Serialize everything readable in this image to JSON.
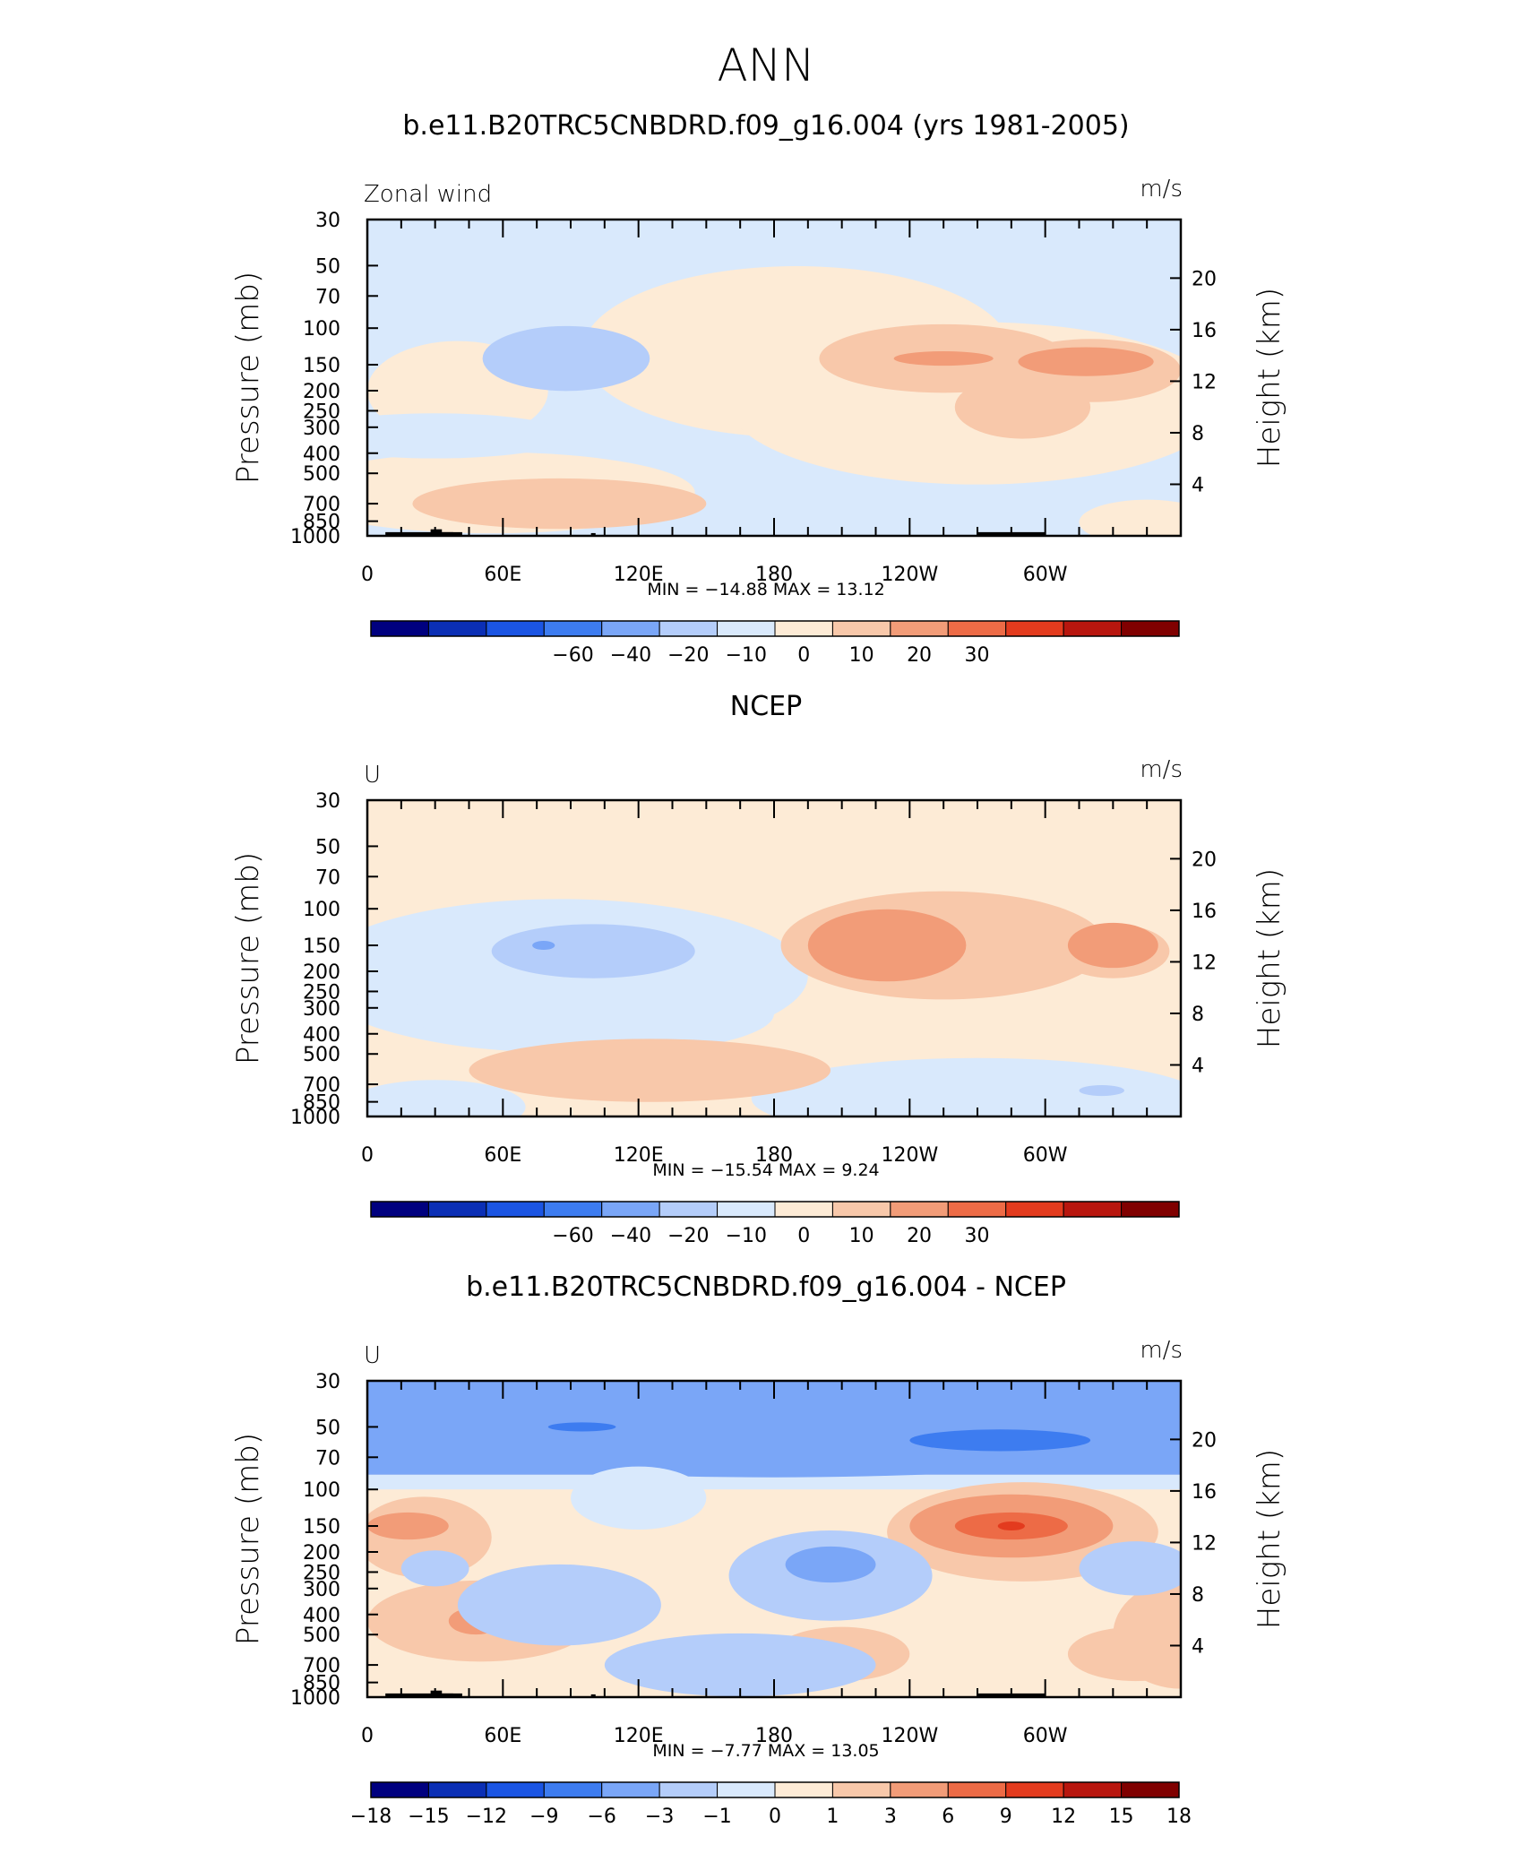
{
  "page_title": "ANN",
  "chart_data": [
    {
      "type": "heatmap",
      "title": "b.e11.B20TRC5CNBDRD.f09_g16.004 (yrs 1981-2005)",
      "left_string": "Zonal wind",
      "right_string": "m/s",
      "ylabel": "Pressure (mb)",
      "y2label": "Height (km)",
      "x_ticks": [
        "0",
        "60E",
        "120E",
        "180",
        "120W",
        "60W"
      ],
      "y_ticks": [
        "30",
        "50",
        "70",
        "100",
        "150",
        "200",
        "250",
        "300",
        "400",
        "500",
        "700",
        "850",
        "1000"
      ],
      "y2_ticks": [
        "20",
        "16",
        "12",
        "8",
        "4"
      ],
      "min": -14.88,
      "max": 13.12,
      "minmax_text": "MIN = −14.88   MAX =   13.12",
      "colorbar_labels": [
        "−60",
        "−40",
        "−20",
        "−10",
        "0",
        "10",
        "20",
        "30"
      ],
      "colors": [
        "#00007f",
        "#0b2fb5",
        "#1b55e3",
        "#3d7cf0",
        "#7aa6f7",
        "#b4cdfa",
        "#d9e9fc",
        "#fdebd6",
        "#f8c8aa",
        "#f29c78",
        "#ed6b46",
        "#e33b1e",
        "#b8160e",
        "#800000"
      ],
      "features": [
        {
          "band": 6,
          "desc": "background",
          "level": "~-2"
        },
        {
          "band": 7,
          "lon": [
            190,
            330
          ],
          "p": [
            70,
            500
          ],
          "level": "0 to 5"
        },
        {
          "band": 8,
          "lon": [
            200,
            350
          ],
          "p": [
            100,
            300
          ],
          "level": "5 to 10"
        },
        {
          "band": 9,
          "lon": [
            275,
            340
          ],
          "p": [
            120,
            180
          ],
          "level": "10 to 15"
        },
        {
          "band": 5,
          "lon": [
            55,
            125
          ],
          "p": [
            100,
            200
          ],
          "level": "-10 to -5"
        },
        {
          "band": 8,
          "lon": [
            45,
            120
          ],
          "p": [
            550,
            850
          ],
          "level": "5 to 10"
        }
      ]
    },
    {
      "type": "heatmap",
      "title": "NCEP",
      "left_string": "U",
      "right_string": "m/s",
      "ylabel": "Pressure (mb)",
      "y2label": "Height (km)",
      "x_ticks": [
        "0",
        "60E",
        "120E",
        "180",
        "120W",
        "60W"
      ],
      "y_ticks": [
        "30",
        "50",
        "70",
        "100",
        "150",
        "200",
        "250",
        "300",
        "400",
        "500",
        "700",
        "850",
        "1000"
      ],
      "y2_ticks": [
        "20",
        "16",
        "12",
        "8",
        "4"
      ],
      "min": -15.54,
      "max": 9.24,
      "minmax_text": "MIN = −15.54   MAX =    9.24",
      "colorbar_labels": [
        "−60",
        "−40",
        "−20",
        "−10",
        "0",
        "10",
        "20",
        "30"
      ],
      "colors": [
        "#00007f",
        "#0b2fb5",
        "#1b55e3",
        "#3d7cf0",
        "#7aa6f7",
        "#b4cdfa",
        "#d9e9fc",
        "#fdebd6",
        "#f8c8aa",
        "#f29c78",
        "#ed6b46",
        "#e33b1e",
        "#b8160e",
        "#800000"
      ],
      "features": [
        {
          "band": 7,
          "desc": "background",
          "level": "0 to 5"
        },
        {
          "band": 6,
          "lon": [
            10,
            190
          ],
          "p": [
            70,
            500
          ],
          "level": "-5 to 0"
        },
        {
          "band": 5,
          "lon": [
            50,
            150
          ],
          "p": [
            100,
            220
          ],
          "level": "-10 to -5"
        },
        {
          "band": 8,
          "lon": [
            190,
            350
          ],
          "p": [
            70,
            350
          ],
          "level": "5 to 10"
        },
        {
          "band": 9,
          "lon": [
            200,
            260
          ],
          "p": [
            100,
            200
          ],
          "level": "10 to 15"
        },
        {
          "band": 6,
          "lon": [
            200,
            360
          ],
          "p": [
            600,
            1000
          ],
          "level": "-5 to 0"
        }
      ]
    },
    {
      "type": "heatmap",
      "title": "b.e11.B20TRC5CNBDRD.f09_g16.004 - NCEP",
      "left_string": "U",
      "right_string": "m/s",
      "ylabel": "Pressure (mb)",
      "y2label": "Height (km)",
      "x_ticks": [
        "0",
        "60E",
        "120E",
        "180",
        "120W",
        "60W"
      ],
      "y_ticks": [
        "30",
        "50",
        "70",
        "100",
        "150",
        "200",
        "250",
        "300",
        "400",
        "500",
        "700",
        "850",
        "1000"
      ],
      "y2_ticks": [
        "20",
        "16",
        "12",
        "8",
        "4"
      ],
      "min": -7.77,
      "max": 13.05,
      "minmax_text": "MIN =   −7.77   MAX =   13.05",
      "colorbar_labels": [
        "−18",
        "−15",
        "−12",
        "−9",
        "−6",
        "−3",
        "−1",
        "0",
        "1",
        "3",
        "6",
        "9",
        "12",
        "15",
        "18"
      ],
      "colors": [
        "#00007f",
        "#0b2fb5",
        "#1b55e3",
        "#3d7cf0",
        "#7aa6f7",
        "#b4cdfa",
        "#d9e9fc",
        "#fdebd6",
        "#f8c8aa",
        "#f29c78",
        "#ed6b46",
        "#e33b1e",
        "#b8160e",
        "#800000"
      ],
      "features": [
        {
          "band": 4,
          "lon": [
            0,
            360
          ],
          "p": [
            30,
            90
          ],
          "level": "-6 to -3"
        },
        {
          "band": 3,
          "lon": [
            250,
            310
          ],
          "p": [
            55,
            75
          ],
          "level": "-9 to -6"
        },
        {
          "band": 7,
          "desc": "background below 100 mb",
          "level": "0 to 1"
        },
        {
          "band": 9,
          "lon": [
            250,
            330
          ],
          "p": [
            110,
            250
          ],
          "level": "6 to 9"
        },
        {
          "band": 10,
          "lon": [
            270,
            310
          ],
          "p": [
            130,
            180
          ],
          "level": "9 to 12"
        },
        {
          "band": 4,
          "lon": [
            175,
            240
          ],
          "p": [
            150,
            300
          ],
          "level": "-6 to -3"
        }
      ]
    }
  ]
}
